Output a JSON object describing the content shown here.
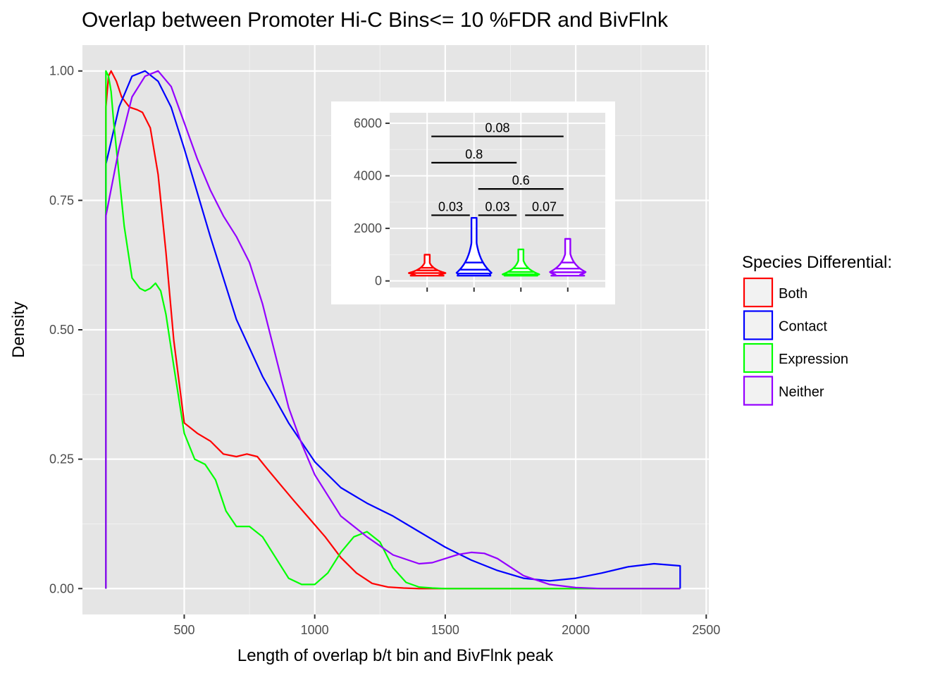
{
  "chart_data": [
    {
      "type": "line",
      "title": "Overlap between Promoter Hi-C Bins<= 10 %FDR and BivFlnk",
      "xlabel": "Length of overlap b/t bin and BivFlnk peak",
      "ylabel": "Density",
      "xlim": [
        110,
        2510
      ],
      "ylim": [
        -0.05,
        1.05
      ],
      "x_ticks": [
        500,
        1000,
        1500,
        2000,
        2500
      ],
      "x_tick_labels": [
        "500",
        "1000",
        "1500",
        "2000",
        "2500"
      ],
      "y_ticks": [
        0,
        0.25,
        0.5,
        0.75,
        1.0
      ],
      "y_tick_labels": [
        "0.00",
        "0.25",
        "0.50",
        "0.75",
        "1.00"
      ],
      "grid": true,
      "legend": {
        "title": "Species Differential:",
        "position": "right",
        "entries": [
          "Both",
          "Contact",
          "Expression",
          "Neither"
        ]
      },
      "series": [
        {
          "name": "Both",
          "color": "#ff0000",
          "x": [
            200,
            200,
            210,
            220,
            240,
            260,
            290,
            320,
            340,
            370,
            400,
            430,
            460,
            500,
            550,
            600,
            650,
            700,
            740,
            780,
            820,
            870,
            920,
            980,
            1040,
            1100,
            1160,
            1220,
            1280,
            1340,
            1400,
            2400
          ],
          "y": [
            0,
            0.93,
            0.99,
            1.0,
            0.98,
            0.95,
            0.93,
            0.925,
            0.92,
            0.89,
            0.8,
            0.65,
            0.48,
            0.32,
            0.3,
            0.285,
            0.26,
            0.255,
            0.26,
            0.255,
            0.23,
            0.2,
            0.17,
            0.135,
            0.1,
            0.06,
            0.03,
            0.01,
            0.003,
            0.001,
            0.0,
            0.0
          ]
        },
        {
          "name": "Contact",
          "color": "#0000ff",
          "x": [
            200,
            200,
            250,
            300,
            350,
            400,
            450,
            500,
            600,
            700,
            800,
            900,
            1000,
            1100,
            1200,
            1300,
            1400,
            1500,
            1600,
            1700,
            1800,
            1900,
            2000,
            2100,
            2200,
            2300,
            2400,
            2400,
            2400
          ],
          "y": [
            0,
            0.82,
            0.93,
            0.99,
            1.0,
            0.98,
            0.93,
            0.85,
            0.68,
            0.52,
            0.41,
            0.32,
            0.245,
            0.195,
            0.165,
            0.14,
            0.11,
            0.08,
            0.055,
            0.035,
            0.02,
            0.015,
            0.02,
            0.03,
            0.042,
            0.048,
            0.044,
            0.0,
            0.0
          ]
        },
        {
          "name": "Expression",
          "color": "#00ff00",
          "x": [
            200,
            200,
            210,
            220,
            230,
            250,
            270,
            300,
            330,
            350,
            370,
            390,
            410,
            430,
            460,
            500,
            540,
            580,
            620,
            660,
            700,
            750,
            800,
            850,
            900,
            950,
            1000,
            1050,
            1100,
            1150,
            1200,
            1250,
            1300,
            1350,
            1400,
            1450,
            1500,
            2400
          ],
          "y": [
            0,
            1.0,
            0.99,
            0.96,
            0.9,
            0.8,
            0.7,
            0.6,
            0.58,
            0.575,
            0.58,
            0.59,
            0.575,
            0.53,
            0.43,
            0.3,
            0.25,
            0.24,
            0.21,
            0.15,
            0.12,
            0.12,
            0.1,
            0.06,
            0.02,
            0.008,
            0.008,
            0.03,
            0.07,
            0.1,
            0.11,
            0.09,
            0.04,
            0.012,
            0.003,
            0.001,
            0.0,
            0.0
          ]
        },
        {
          "name": "Neither",
          "color": "#9400ff",
          "x": [
            200,
            200,
            250,
            300,
            350,
            400,
            450,
            500,
            550,
            600,
            650,
            700,
            750,
            800,
            850,
            900,
            950,
            1000,
            1100,
            1200,
            1300,
            1400,
            1450,
            1500,
            1550,
            1600,
            1650,
            1700,
            1800,
            1900,
            2000,
            2100,
            2200,
            2300,
            2400
          ],
          "y": [
            0,
            0.72,
            0.85,
            0.95,
            0.99,
            1.0,
            0.97,
            0.9,
            0.83,
            0.77,
            0.72,
            0.68,
            0.63,
            0.55,
            0.45,
            0.35,
            0.28,
            0.22,
            0.14,
            0.1,
            0.065,
            0.048,
            0.05,
            0.058,
            0.066,
            0.07,
            0.068,
            0.058,
            0.025,
            0.008,
            0.002,
            0.0,
            0.0,
            0.0,
            0.0
          ]
        }
      ]
    },
    {
      "type": "violin",
      "title": "",
      "xlabel": "",
      "ylabel": "",
      "ylim": [
        -250,
        6400
      ],
      "y_ticks": [
        0,
        2000,
        4000,
        6000
      ],
      "y_tick_labels": [
        "0",
        "2000",
        "4000",
        "6000"
      ],
      "grid": true,
      "groups": [
        {
          "name": "Both",
          "color": "#ff0000",
          "min": 200,
          "max": 1000,
          "quantiles": [
            300,
            400,
            500
          ]
        },
        {
          "name": "Contact",
          "color": "#0000ff",
          "min": 200,
          "max": 2400,
          "quantiles": [
            280,
            430,
            700
          ]
        },
        {
          "name": "Expression",
          "color": "#00ff00",
          "min": 200,
          "max": 1200,
          "quantiles": [
            250,
            340,
            480
          ]
        },
        {
          "name": "Neither",
          "color": "#9400ff",
          "min": 200,
          "max": 1600,
          "quantiles": [
            330,
            470,
            700
          ]
        }
      ],
      "comparisons": [
        {
          "from": 0,
          "to": 3,
          "y": 5500,
          "label": "0.08"
        },
        {
          "from": 0,
          "to": 2,
          "y": 4500,
          "label": "0.8"
        },
        {
          "from": 1,
          "to": 3,
          "y": 3500,
          "label": "0.6"
        },
        {
          "from": 0,
          "to": 1,
          "y": 2500,
          "label": "0.03"
        },
        {
          "from": 1,
          "to": 2,
          "y": 2500,
          "label": "0.03"
        },
        {
          "from": 2,
          "to": 3,
          "y": 2500,
          "label": "0.07"
        }
      ]
    }
  ]
}
